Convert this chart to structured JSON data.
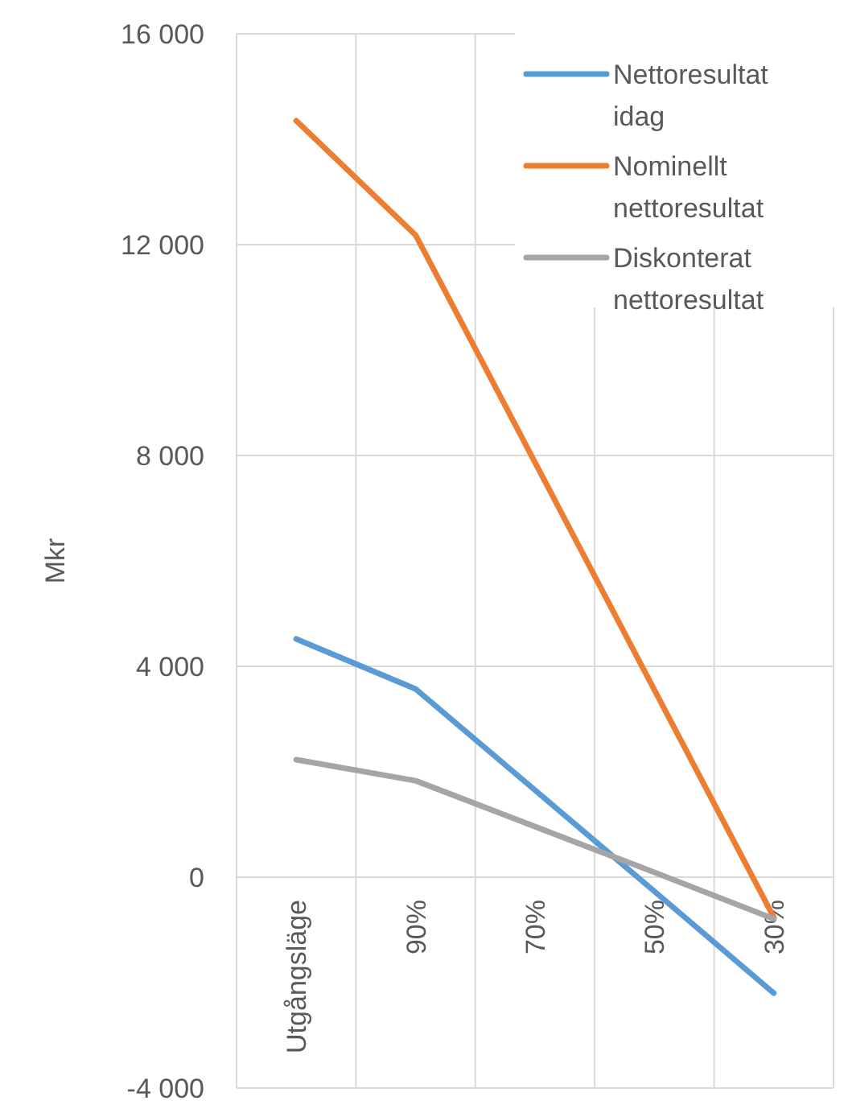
{
  "chart_data": {
    "type": "line",
    "ylabel": "Mkr",
    "categories": [
      "Utgångsläge",
      "90%",
      "70%",
      "50%",
      "30%"
    ],
    "series": [
      {
        "name": "Nettoresultat idag",
        "color": "#5b9bd5",
        "values": [
          4520,
          3570,
          1650,
          -270,
          -2200
        ]
      },
      {
        "name": "Nominellt nettoresultat",
        "color": "#ed7d31",
        "values": [
          14350,
          12180,
          7870,
          3550,
          -760
        ]
      },
      {
        "name": "Diskonterat nettoresultat",
        "color": "#a5a5a5",
        "values": [
          2230,
          1830,
          960,
          90,
          -790
        ]
      }
    ],
    "ylim": [
      -4000,
      16000
    ],
    "yticks": [
      {
        "value": -4000,
        "label": "-4 000"
      },
      0,
      {
        "value": 4000,
        "label": "4 000"
      },
      {
        "value": 8000,
        "label": "8 000"
      },
      {
        "value": 12000,
        "label": "12 000"
      },
      {
        "value": 16000,
        "label": "16 000"
      }
    ],
    "grid": true,
    "legend": "top right",
    "marker": "none",
    "line_style": "solid"
  }
}
